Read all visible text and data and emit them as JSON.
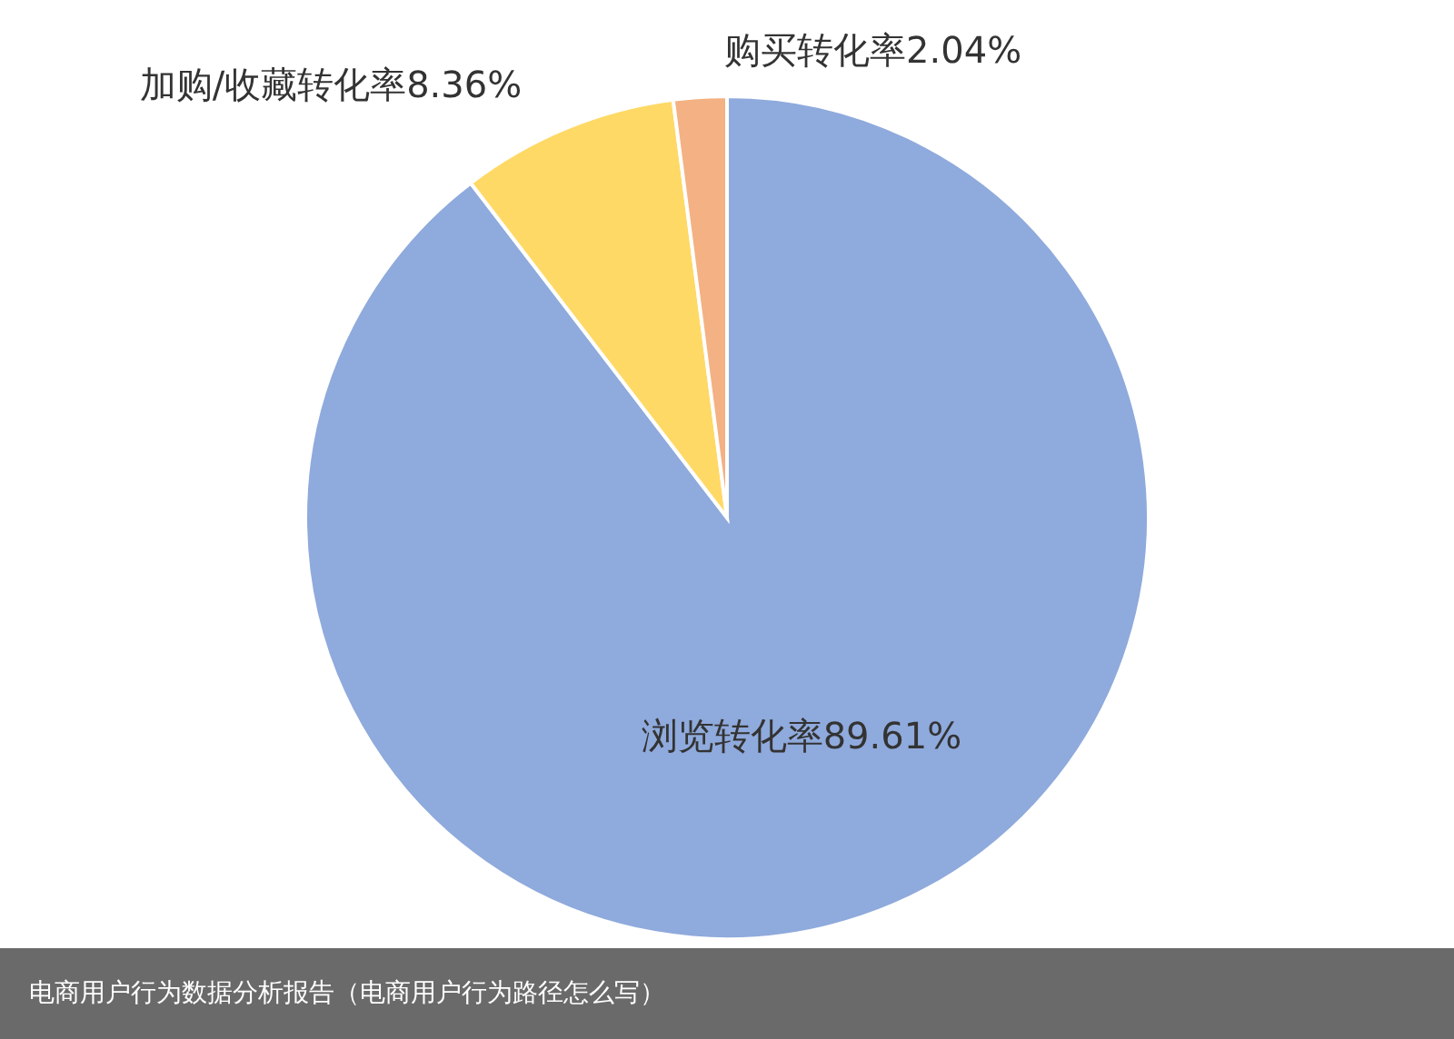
{
  "chart_data": {
    "type": "pie",
    "categories": [
      "浏览转化率",
      "加购/收藏转化率",
      "购买转化率"
    ],
    "values": [
      89.61,
      8.36,
      2.04
    ],
    "colors": [
      "#8faadc",
      "#ffd966",
      "#f4b183"
    ],
    "value_labels": [
      "89.61%",
      "8.36%",
      "2.04%"
    ],
    "annotations": [
      "电商用户行为数据分析报告（电商用户行为路径怎么写）"
    ]
  }
}
